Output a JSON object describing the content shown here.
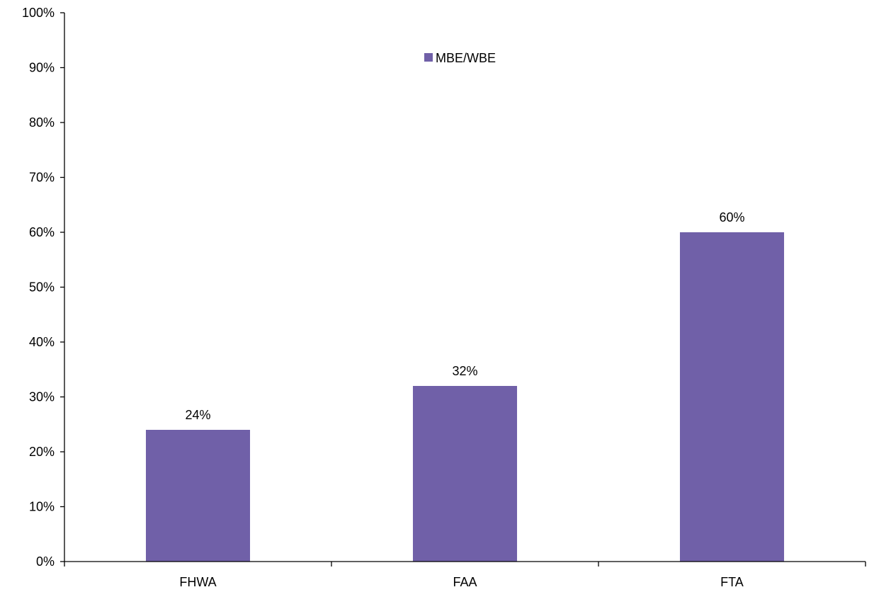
{
  "chart_data": {
    "type": "bar",
    "categories": [
      "FHWA",
      "FAA",
      "FTA"
    ],
    "series": [
      {
        "name": "MBE/WBE",
        "values": [
          24,
          32,
          60
        ],
        "color": "#7060a8"
      }
    ],
    "data_labels": [
      "24%",
      "32%",
      "60%"
    ],
    "y_ticks": [
      "0%",
      "10%",
      "20%",
      "30%",
      "40%",
      "50%",
      "60%",
      "70%",
      "80%",
      "90%",
      "100%"
    ],
    "ylim": [
      0,
      100
    ],
    "grid": false,
    "legend_position": "top-center"
  }
}
